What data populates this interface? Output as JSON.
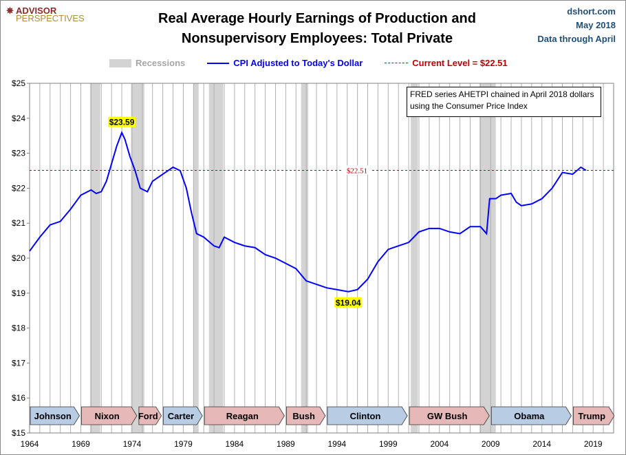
{
  "logo": {
    "line1": "ADVISOR",
    "line2": "PERSPECTIVES"
  },
  "header": {
    "source": "dshort.com",
    "date": "May 2018",
    "data_through": "Data through April"
  },
  "note": "FRED series AHETPI chained in April 2018 dollars using the Consumer Price Index",
  "colors": {
    "series": "#0000ff",
    "current": "#c00000",
    "recession": "#d3d3d3",
    "dem": "#b8cce4",
    "rep": "#e6b8b7"
  },
  "chart_data": {
    "type": "line",
    "title": "Real Average Hourly Earnings of Production and Nonsupervisory Employees: Total Private",
    "legend": {
      "recessions": "Recessions",
      "series": "CPI Adjusted to Today's Dollar",
      "current": "Current Level = $22.51"
    },
    "legend_placement": "top",
    "grid": "vertical yearly",
    "xlim": [
      1964,
      2021
    ],
    "ylim": [
      15,
      25
    ],
    "x_ticks": [
      "1964",
      "1969",
      "1974",
      "1979",
      "1984",
      "1989",
      "1994",
      "1999",
      "2004",
      "2009",
      "2014",
      "2019"
    ],
    "y_ticks": [
      "$15",
      "$16",
      "$17",
      "$18",
      "$19",
      "$20",
      "$21",
      "$22",
      "$23",
      "$24",
      "$25"
    ],
    "current_level": 22.51,
    "current_label": "$22.51",
    "annotations": [
      {
        "x": 1973.0,
        "y": 23.59,
        "label": "$23.59"
      },
      {
        "x": 1995.1,
        "y": 19.04,
        "label": "$19.04"
      }
    ],
    "recessions": [
      [
        1969.9,
        1970.9
      ],
      [
        1973.9,
        1975.2
      ],
      [
        1980.0,
        1980.5
      ],
      [
        1981.5,
        1982.9
      ],
      [
        1990.5,
        1991.2
      ],
      [
        2001.2,
        2001.9
      ],
      [
        2007.9,
        2009.5
      ]
    ],
    "presidents": [
      {
        "name": "Johnson",
        "start": 1964,
        "end": 1969,
        "party": "dem"
      },
      {
        "name": "Nixon",
        "start": 1969,
        "end": 1974.6,
        "party": "rep"
      },
      {
        "name": "Ford",
        "start": 1974.6,
        "end": 1977,
        "party": "rep"
      },
      {
        "name": "Carter",
        "start": 1977,
        "end": 1981,
        "party": "dem"
      },
      {
        "name": "Reagan",
        "start": 1981,
        "end": 1989,
        "party": "rep"
      },
      {
        "name": "Bush",
        "start": 1989,
        "end": 1993,
        "party": "rep"
      },
      {
        "name": "Clinton",
        "start": 1993,
        "end": 2001,
        "party": "dem"
      },
      {
        "name": "GW Bush",
        "start": 2001,
        "end": 2009,
        "party": "rep"
      },
      {
        "name": "Obama",
        "start": 2009,
        "end": 2017,
        "party": "dem"
      },
      {
        "name": "Trump",
        "start": 2017,
        "end": 2021.2,
        "party": "rep"
      }
    ],
    "series": [
      {
        "name": "CPI Adjusted to Today's Dollar",
        "x": [
          1964,
          1965,
          1966,
          1967,
          1968,
          1969,
          1970,
          1970.5,
          1971,
          1971.5,
          1972,
          1972.5,
          1973,
          1973.3,
          1973.8,
          1974.3,
          1974.8,
          1975.5,
          1976,
          1977,
          1978,
          1978.7,
          1979.3,
          1979.8,
          1980.3,
          1981,
          1982,
          1982.5,
          1983,
          1984,
          1985,
          1986,
          1987,
          1988,
          1989,
          1990,
          1991,
          1992,
          1993,
          1994,
          1995.1,
          1996,
          1997,
          1998,
          1999,
          2000,
          2001,
          2002,
          2003,
          2004,
          2005,
          2006,
          2007,
          2008,
          2008.6,
          2008.9,
          2009.5,
          2010,
          2011,
          2011.5,
          2012,
          2013,
          2014,
          2015,
          2016,
          2017,
          2017.8,
          2018.3
        ],
        "y": [
          20.2,
          20.6,
          20.95,
          21.05,
          21.4,
          21.8,
          21.95,
          21.85,
          21.9,
          22.2,
          22.7,
          23.2,
          23.59,
          23.4,
          22.9,
          22.5,
          22.0,
          21.9,
          22.2,
          22.4,
          22.6,
          22.5,
          22.0,
          21.3,
          20.7,
          20.6,
          20.35,
          20.3,
          20.6,
          20.45,
          20.35,
          20.3,
          20.1,
          20.0,
          19.85,
          19.7,
          19.35,
          19.25,
          19.15,
          19.1,
          19.04,
          19.1,
          19.4,
          19.9,
          20.25,
          20.35,
          20.45,
          20.75,
          20.85,
          20.85,
          20.75,
          20.7,
          20.9,
          20.9,
          20.7,
          21.7,
          21.7,
          21.8,
          21.85,
          21.6,
          21.5,
          21.55,
          21.7,
          22.0,
          22.45,
          22.4,
          22.6,
          22.51
        ]
      }
    ]
  }
}
